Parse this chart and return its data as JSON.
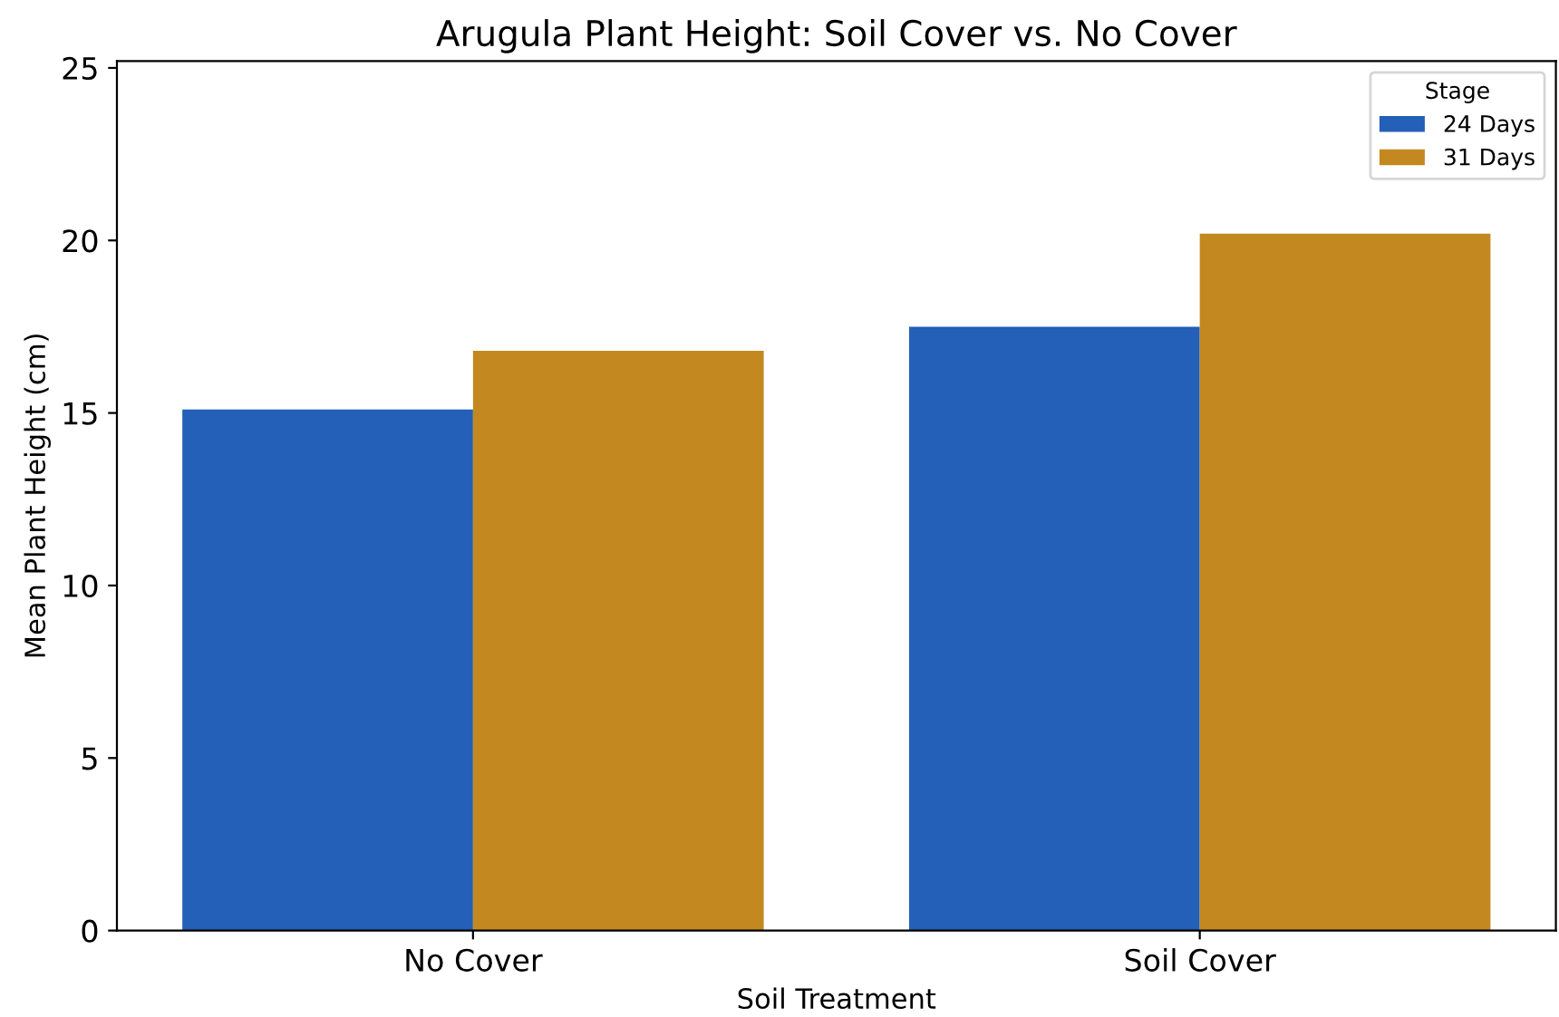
{
  "chart_data": {
    "type": "bar",
    "title": "Arugula Plant Height: Soil Cover vs. No Cover",
    "xlabel": "Soil Treatment",
    "ylabel": "Mean Plant Height (cm)",
    "legend_title": "Stage",
    "categories": [
      "No Cover",
      "Soil Cover"
    ],
    "series": [
      {
        "name": "24 Days",
        "color": "#245fb8",
        "values": [
          15.1,
          17.5
        ]
      },
      {
        "name": "31 Days",
        "color": "#c38920",
        "values": [
          16.8,
          20.2
        ]
      }
    ],
    "ylim": [
      0,
      25.2
    ],
    "yticks": [
      0,
      5,
      10,
      15,
      20,
      25
    ],
    "grid": false,
    "legend": "top right"
  }
}
